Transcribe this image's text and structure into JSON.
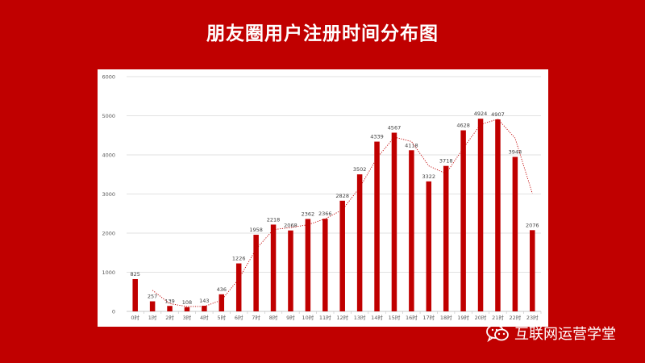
{
  "page": {
    "title": "朋友圈用户注册时间分布图",
    "watermark": "互联网运营学堂",
    "background_color": "#C00000",
    "bar_color": "#C00000"
  },
  "chart_data": {
    "type": "bar",
    "title": "朋友圈用户注册时间分布图",
    "xlabel": "",
    "ylabel": "",
    "ylim": [
      0,
      6000
    ],
    "yticks": [
      0,
      1000,
      2000,
      3000,
      4000,
      5000,
      6000
    ],
    "grid": true,
    "categories": [
      "0时",
      "1时",
      "2时",
      "3时",
      "4时",
      "5时",
      "6时",
      "7时",
      "8时",
      "9时",
      "10时",
      "11时",
      "12时",
      "13时",
      "14时",
      "15时",
      "16时",
      "17时",
      "18时",
      "19时",
      "20时",
      "21时",
      "22时",
      "23时"
    ],
    "values": [
      825,
      257,
      139,
      108,
      143,
      436,
      1226,
      1958,
      2218,
      2068,
      2362,
      2366,
      2828,
      3502,
      4339,
      4567,
      4118,
      3322,
      3718,
      4628,
      4924,
      4907,
      3948,
      2076
    ],
    "trendline": {
      "type": "moving-average",
      "style": "dotted",
      "color": "#C00000"
    }
  }
}
